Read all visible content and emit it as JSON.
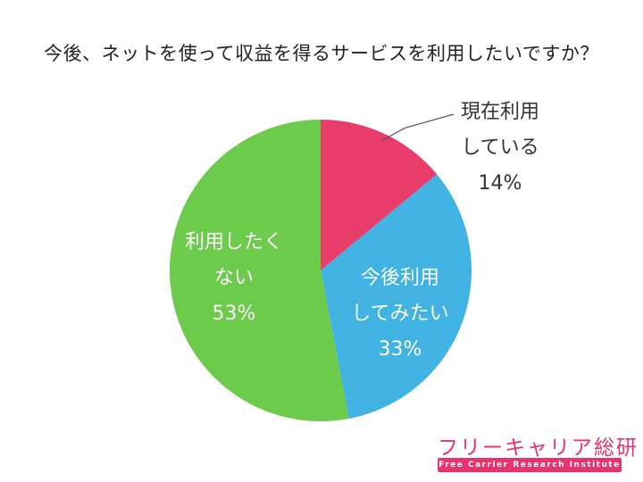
{
  "chart_data": {
    "type": "pie",
    "title": "今後、ネットを使って収益を得るサービスを利用したいですか？",
    "start_angle": "12 o'clock",
    "direction": "clockwise",
    "slices": [
      {
        "label": "現在利用している",
        "label_lines": [
          "現在利用",
          "している"
        ],
        "value": 14,
        "value_text": "14%",
        "color": "#e83c6b",
        "label_color": "#333333",
        "label_placement": "outside"
      },
      {
        "label": "今後利用してみたい",
        "label_lines": [
          "今後利用",
          "してみたい"
        ],
        "value": 33,
        "value_text": "33%",
        "color": "#41b3e3",
        "label_color": "#ffffff",
        "label_placement": "inside"
      },
      {
        "label": "利用したくない",
        "label_lines": [
          "利用したく",
          "ない"
        ],
        "value": 53,
        "value_text": "53%",
        "color": "#6ccb4b",
        "label_color": "#ffffff",
        "label_placement": "inside"
      }
    ]
  },
  "brand": {
    "name": "フリーキャリア総研",
    "tagline": "Free Carrier Research Institute",
    "color": "#e8336c"
  }
}
